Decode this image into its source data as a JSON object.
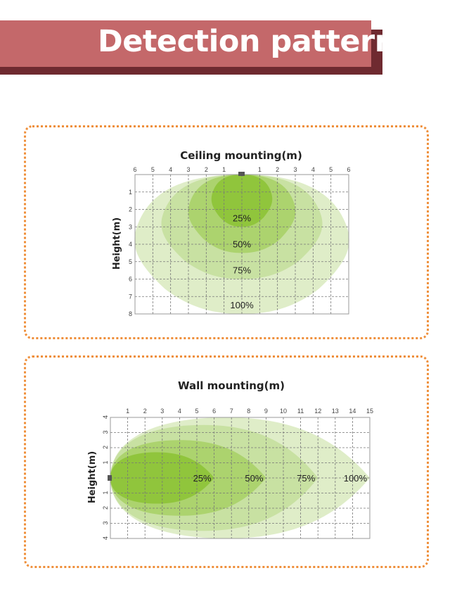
{
  "header": {
    "title": "Detection pattern"
  },
  "colors": {
    "banner": "#c4686a",
    "banner_shadow": "#6f2a30",
    "border": "#ef8f3a",
    "zone_100": "#dcebc2",
    "zone_75": "#c5df9d",
    "zone_50": "#a8d168",
    "zone_25": "#8dc336"
  },
  "chart_data": [
    {
      "type": "area",
      "title": "Ceiling mounting(m)",
      "ylabel": "Height(m)",
      "x_ticks": [
        "6",
        "5",
        "4",
        "3",
        "2",
        "1",
        "1",
        "2",
        "3",
        "4",
        "5",
        "6"
      ],
      "y_ticks": [
        "1",
        "2",
        "3",
        "4",
        "5",
        "6",
        "7",
        "8"
      ],
      "zones": [
        {
          "label": "100%",
          "max_depth_m": 8,
          "max_half_width_m": 6
        },
        {
          "label": "75%",
          "max_depth_m": 6,
          "max_half_width_m": 4.5
        },
        {
          "label": "50%",
          "max_depth_m": 4.5,
          "max_half_width_m": 3
        },
        {
          "label": "25%",
          "max_depth_m": 3,
          "max_half_width_m": 1.7
        }
      ],
      "grid": true
    },
    {
      "type": "area",
      "title": "Wall mounting(m)",
      "ylabel": "Height(m)",
      "x_ticks": [
        "1",
        "2",
        "3",
        "4",
        "5",
        "6",
        "7",
        "8",
        "9",
        "10",
        "11",
        "12",
        "13",
        "14",
        "15"
      ],
      "y_ticks": [
        "4",
        "3",
        "2",
        "1",
        "1",
        "2",
        "3",
        "4"
      ],
      "zones": [
        {
          "label": "25%",
          "max_range_m": 6,
          "max_half_height_m": 1.7
        },
        {
          "label": "50%",
          "max_range_m": 9,
          "max_half_height_m": 2.5
        },
        {
          "label": "75%",
          "max_range_m": 12,
          "max_half_height_m": 3.5
        },
        {
          "label": "100%",
          "max_range_m": 15,
          "max_half_height_m": 4
        }
      ],
      "grid": true
    }
  ]
}
